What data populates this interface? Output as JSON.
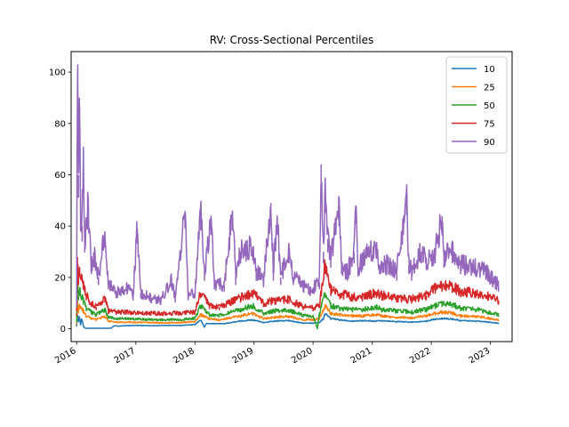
{
  "chart_data": {
    "type": "line",
    "title": "RV: Cross-Sectional Percentiles",
    "xlabel": "",
    "ylabel": "",
    "xlim": [
      "2015-11-28",
      "2023-05-15"
    ],
    "ylim": [
      -5,
      108
    ],
    "x_ticks": [
      "2016",
      "2017",
      "2018",
      "2019",
      "2020",
      "2021",
      "2022",
      "2023"
    ],
    "x_tick_dates": [
      "2016-01-01",
      "2017-01-01",
      "2018-01-01",
      "2019-01-01",
      "2020-01-01",
      "2021-01-01",
      "2022-01-01",
      "2023-01-01"
    ],
    "y_ticks": [
      0,
      20,
      40,
      60,
      80,
      100
    ],
    "y_tick_labels": [
      "0",
      "20",
      "40",
      "60",
      "80",
      "100"
    ],
    "grid": false,
    "legend_position": "top-right",
    "series": [
      {
        "name": "10",
        "color": "#1f77b4",
        "points": [
          [
            "2016-01-01",
            1.0
          ],
          [
            "2016-01-06",
            5.5
          ],
          [
            "2016-01-12",
            3.0
          ],
          [
            "2016-01-18",
            5.0
          ],
          [
            "2016-01-25",
            1.5
          ],
          [
            "2016-02-01",
            4.0
          ],
          [
            "2016-02-15",
            0.5
          ],
          [
            "2016-03-01",
            0.2
          ],
          [
            "2016-04-01",
            0.2
          ],
          [
            "2016-05-01",
            0.2
          ],
          [
            "2016-06-01",
            0.2
          ],
          [
            "2016-07-01",
            0.2
          ],
          [
            "2016-08-01",
            0.2
          ],
          [
            "2016-08-20",
            1.2
          ],
          [
            "2016-09-15",
            1.0
          ],
          [
            "2016-11-01",
            1.2
          ],
          [
            "2017-01-01",
            1.3
          ],
          [
            "2017-04-01",
            1.2
          ],
          [
            "2017-07-01",
            1.3
          ],
          [
            "2017-10-01",
            1.3
          ],
          [
            "2018-01-01",
            1.6
          ],
          [
            "2018-02-06",
            3.5
          ],
          [
            "2018-03-01",
            0.5
          ],
          [
            "2018-03-10",
            2.0
          ],
          [
            "2018-05-01",
            2.0
          ],
          [
            "2018-07-01",
            2.0
          ],
          [
            "2018-10-10",
            3.0
          ],
          [
            "2018-12-24",
            3.5
          ],
          [
            "2019-03-01",
            2.4
          ],
          [
            "2019-05-10",
            3.0
          ],
          [
            "2019-08-05",
            3.2
          ],
          [
            "2019-11-01",
            2.2
          ],
          [
            "2020-01-01",
            2.2
          ],
          [
            "2020-02-10",
            2.5
          ],
          [
            "2020-03-05",
            4.0
          ],
          [
            "2020-03-16",
            6.0
          ],
          [
            "2020-04-20",
            4.0
          ],
          [
            "2020-06-15",
            3.5
          ],
          [
            "2020-09-01",
            3.0
          ],
          [
            "2020-11-01",
            3.2
          ],
          [
            "2021-01-15",
            3.0
          ],
          [
            "2021-03-01",
            3.2
          ],
          [
            "2021-06-01",
            2.8
          ],
          [
            "2021-09-01",
            2.6
          ],
          [
            "2021-12-01",
            3.0
          ],
          [
            "2022-01-25",
            3.8
          ],
          [
            "2022-03-08",
            4.0
          ],
          [
            "2022-05-10",
            3.8
          ],
          [
            "2022-07-01",
            3.2
          ],
          [
            "2022-10-01",
            3.0
          ],
          [
            "2022-12-15",
            2.6
          ],
          [
            "2023-02-20",
            2.2
          ]
        ]
      },
      {
        "name": "25",
        "color": "#ff7f0e",
        "points": [
          [
            "2016-01-01",
            2.0
          ],
          [
            "2016-01-06",
            11.0
          ],
          [
            "2016-01-12",
            7.0
          ],
          [
            "2016-01-20",
            9.0
          ],
          [
            "2016-02-11",
            7.0
          ],
          [
            "2016-03-01",
            5.0
          ],
          [
            "2016-04-01",
            4.0
          ],
          [
            "2016-05-01",
            3.5
          ],
          [
            "2016-06-24",
            5.0
          ],
          [
            "2016-07-15",
            3.0
          ],
          [
            "2016-09-01",
            2.5
          ],
          [
            "2016-11-01",
            2.5
          ],
          [
            "2017-01-01",
            2.5
          ],
          [
            "2017-04-01",
            2.4
          ],
          [
            "2017-07-01",
            2.3
          ],
          [
            "2017-10-01",
            2.4
          ],
          [
            "2018-01-01",
            2.8
          ],
          [
            "2018-02-06",
            5.5
          ],
          [
            "2018-04-01",
            3.8
          ],
          [
            "2018-06-01",
            3.5
          ],
          [
            "2018-10-10",
            5.0
          ],
          [
            "2018-12-24",
            6.0
          ],
          [
            "2019-03-01",
            4.0
          ],
          [
            "2019-05-10",
            4.5
          ],
          [
            "2019-08-05",
            4.8
          ],
          [
            "2019-11-01",
            3.5
          ],
          [
            "2020-01-01",
            3.5
          ],
          [
            "2020-02-10",
            4.0
          ],
          [
            "2020-03-16",
            9.0
          ],
          [
            "2020-04-20",
            6.0
          ],
          [
            "2020-06-15",
            5.5
          ],
          [
            "2020-09-01",
            5.0
          ],
          [
            "2020-11-01",
            5.0
          ],
          [
            "2021-01-27",
            5.5
          ],
          [
            "2021-03-01",
            5.0
          ],
          [
            "2021-06-01",
            4.5
          ],
          [
            "2021-09-01",
            4.3
          ],
          [
            "2021-12-01",
            5.0
          ],
          [
            "2022-01-25",
            6.0
          ],
          [
            "2022-03-08",
            6.5
          ],
          [
            "2022-05-10",
            6.2
          ],
          [
            "2022-07-01",
            5.0
          ],
          [
            "2022-10-01",
            4.8
          ],
          [
            "2022-12-15",
            4.2
          ],
          [
            "2023-02-20",
            3.5
          ]
        ]
      },
      {
        "name": "50",
        "color": "#2ca02c",
        "points": [
          [
            "2016-01-01",
            3.0
          ],
          [
            "2016-01-06",
            19.0
          ],
          [
            "2016-01-12",
            13.0
          ],
          [
            "2016-01-20",
            15.0
          ],
          [
            "2016-02-11",
            11.0
          ],
          [
            "2016-03-01",
            8.0
          ],
          [
            "2016-04-01",
            6.5
          ],
          [
            "2016-05-01",
            5.5
          ],
          [
            "2016-06-24",
            7.5
          ],
          [
            "2016-07-15",
            4.5
          ],
          [
            "2016-09-01",
            4.0
          ],
          [
            "2016-11-01",
            4.0
          ],
          [
            "2017-01-01",
            3.8
          ],
          [
            "2017-04-01",
            3.6
          ],
          [
            "2017-07-01",
            3.5
          ],
          [
            "2017-10-01",
            3.6
          ],
          [
            "2018-01-01",
            4.0
          ],
          [
            "2018-02-06",
            9.0
          ],
          [
            "2018-04-01",
            5.5
          ],
          [
            "2018-06-01",
            5.2
          ],
          [
            "2018-10-10",
            7.5
          ],
          [
            "2018-12-24",
            9.0
          ],
          [
            "2019-03-01",
            6.0
          ],
          [
            "2019-05-10",
            7.0
          ],
          [
            "2019-08-05",
            7.2
          ],
          [
            "2019-11-01",
            5.2
          ],
          [
            "2020-01-01",
            5.0
          ],
          [
            "2020-01-28",
            0.0
          ],
          [
            "2020-02-10",
            6.0
          ],
          [
            "2020-03-16",
            14.0
          ],
          [
            "2020-04-20",
            9.0
          ],
          [
            "2020-06-15",
            8.0
          ],
          [
            "2020-09-01",
            7.5
          ],
          [
            "2020-11-01",
            7.5
          ],
          [
            "2021-01-27",
            8.5
          ],
          [
            "2021-03-01",
            7.5
          ],
          [
            "2021-06-01",
            7.0
          ],
          [
            "2021-09-01",
            6.5
          ],
          [
            "2021-12-01",
            7.5
          ],
          [
            "2022-01-25",
            9.0
          ],
          [
            "2022-03-08",
            10.0
          ],
          [
            "2022-05-10",
            9.5
          ],
          [
            "2022-07-01",
            8.0
          ],
          [
            "2022-10-01",
            7.5
          ],
          [
            "2022-12-15",
            6.5
          ],
          [
            "2023-02-20",
            5.5
          ]
        ]
      },
      {
        "name": "75",
        "color": "#d62728",
        "points": [
          [
            "2016-01-01",
            6.0
          ],
          [
            "2016-01-06",
            28.0
          ],
          [
            "2016-01-12",
            20.0
          ],
          [
            "2016-01-20",
            24.0
          ],
          [
            "2016-02-11",
            18.0
          ],
          [
            "2016-03-01",
            13.0
          ],
          [
            "2016-04-01",
            10.0
          ],
          [
            "2016-05-01",
            8.5
          ],
          [
            "2016-06-24",
            12.0
          ],
          [
            "2016-07-15",
            7.0
          ],
          [
            "2016-09-01",
            6.5
          ],
          [
            "2016-11-01",
            6.5
          ],
          [
            "2017-01-01",
            6.2
          ],
          [
            "2017-04-01",
            6.0
          ],
          [
            "2017-07-01",
            6.0
          ],
          [
            "2017-10-01",
            6.2
          ],
          [
            "2018-01-01",
            6.5
          ],
          [
            "2018-02-06",
            14.0
          ],
          [
            "2018-04-01",
            9.0
          ],
          [
            "2018-06-01",
            8.5
          ],
          [
            "2018-10-10",
            12.0
          ],
          [
            "2018-12-24",
            14.0
          ],
          [
            "2019-03-01",
            10.0
          ],
          [
            "2019-05-10",
            11.0
          ],
          [
            "2019-08-05",
            11.5
          ],
          [
            "2019-11-01",
            8.5
          ],
          [
            "2020-01-01",
            8.0
          ],
          [
            "2020-02-10",
            9.5
          ],
          [
            "2020-03-16",
            25.0
          ],
          [
            "2020-04-20",
            15.0
          ],
          [
            "2020-06-15",
            13.5
          ],
          [
            "2020-09-01",
            12.5
          ],
          [
            "2020-11-01",
            12.5
          ],
          [
            "2021-01-27",
            14.0
          ],
          [
            "2021-03-01",
            13.0
          ],
          [
            "2021-06-01",
            12.0
          ],
          [
            "2021-09-01",
            11.5
          ],
          [
            "2021-12-01",
            13.0
          ],
          [
            "2022-01-25",
            16.0
          ],
          [
            "2022-03-08",
            17.0
          ],
          [
            "2022-05-10",
            16.5
          ],
          [
            "2022-07-01",
            14.5
          ],
          [
            "2022-10-01",
            14.0
          ],
          [
            "2022-12-15",
            13.0
          ],
          [
            "2023-02-20",
            11.0
          ]
        ]
      },
      {
        "name": "90",
        "color": "#9467bd",
        "points": [
          [
            "2016-01-01",
            10.0
          ],
          [
            "2016-01-05",
            84.0
          ],
          [
            "2016-01-08",
            103.0
          ],
          [
            "2016-01-12",
            60.0
          ],
          [
            "2016-01-18",
            90.0
          ],
          [
            "2016-01-25",
            45.0
          ],
          [
            "2016-02-04",
            40.0
          ],
          [
            "2016-02-11",
            69.0
          ],
          [
            "2016-02-20",
            35.0
          ],
          [
            "2016-03-10",
            47.0
          ],
          [
            "2016-04-01",
            25.0
          ],
          [
            "2016-04-20",
            28.0
          ],
          [
            "2016-05-15",
            20.0
          ],
          [
            "2016-06-24",
            37.0
          ],
          [
            "2016-07-15",
            18.0
          ],
          [
            "2016-09-01",
            14.0
          ],
          [
            "2016-11-09",
            16.0
          ],
          [
            "2016-12-15",
            13.0
          ],
          [
            "2017-01-10",
            39.0
          ],
          [
            "2017-02-01",
            14.0
          ],
          [
            "2017-04-01",
            12.0
          ],
          [
            "2017-06-01",
            11.0
          ],
          [
            "2017-08-10",
            19.0
          ],
          [
            "2017-09-01",
            12.0
          ],
          [
            "2017-11-01",
            46.0
          ],
          [
            "2017-11-20",
            13.0
          ],
          [
            "2018-01-01",
            14.0
          ],
          [
            "2018-02-06",
            45.0
          ],
          [
            "2018-03-01",
            22.0
          ],
          [
            "2018-04-10",
            43.0
          ],
          [
            "2018-05-01",
            18.0
          ],
          [
            "2018-07-01",
            17.0
          ],
          [
            "2018-08-20",
            45.0
          ],
          [
            "2018-09-10",
            20.0
          ],
          [
            "2018-10-10",
            30.0
          ],
          [
            "2018-12-24",
            32.0
          ],
          [
            "2019-01-15",
            22.0
          ],
          [
            "2019-03-01",
            19.0
          ],
          [
            "2019-04-15",
            49.0
          ],
          [
            "2019-05-01",
            22.0
          ],
          [
            "2019-05-25",
            44.0
          ],
          [
            "2019-06-15",
            20.0
          ],
          [
            "2019-08-05",
            30.0
          ],
          [
            "2019-09-01",
            20.0
          ],
          [
            "2019-11-01",
            17.0
          ],
          [
            "2019-12-15",
            15.0
          ],
          [
            "2020-01-01",
            16.0
          ],
          [
            "2020-02-10",
            18.0
          ],
          [
            "2020-02-20",
            64.0
          ],
          [
            "2020-03-05",
            30.0
          ],
          [
            "2020-03-16",
            53.0
          ],
          [
            "2020-04-01",
            35.0
          ],
          [
            "2020-04-20",
            28.0
          ],
          [
            "2020-06-10",
            47.0
          ],
          [
            "2020-06-25",
            25.0
          ],
          [
            "2020-08-01",
            22.0
          ],
          [
            "2020-09-10",
            30.0
          ],
          [
            "2020-09-20",
            48.0
          ],
          [
            "2020-10-05",
            24.0
          ],
          [
            "2020-11-01",
            27.0
          ],
          [
            "2021-01-27",
            32.0
          ],
          [
            "2021-02-15",
            25.0
          ],
          [
            "2021-04-01",
            25.0
          ],
          [
            "2021-06-01",
            22.0
          ],
          [
            "2021-08-01",
            52.0
          ],
          [
            "2021-08-15",
            25.0
          ],
          [
            "2021-09-01",
            22.0
          ],
          [
            "2021-11-01",
            30.0
          ],
          [
            "2021-12-01",
            27.0
          ],
          [
            "2022-01-25",
            30.0
          ],
          [
            "2022-03-08",
            44.0
          ],
          [
            "2022-03-20",
            28.0
          ],
          [
            "2022-05-10",
            30.0
          ],
          [
            "2022-07-01",
            25.0
          ],
          [
            "2022-10-01",
            24.0
          ],
          [
            "2022-12-15",
            22.0
          ],
          [
            "2023-02-01",
            18.0
          ],
          [
            "2023-02-20",
            17.0
          ]
        ]
      }
    ]
  }
}
